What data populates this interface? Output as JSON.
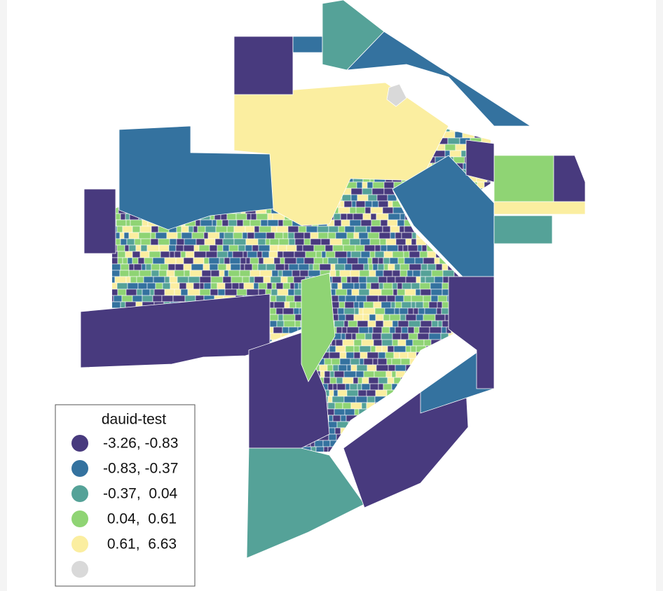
{
  "legend": {
    "title": "dauid-test",
    "items": [
      {
        "label": "-3.26, -0.83",
        "color": "#483a7e"
      },
      {
        "label": "-0.83, -0.37",
        "color": "#34729f"
      },
      {
        "label": "-0.37,  0.04",
        "color": "#55a298"
      },
      {
        "label": " 0.04,  0.61",
        "color": "#8fd474"
      },
      {
        "label": " 0.61,  6.63",
        "color": "#fbeea0"
      },
      {
        "color": "#d9d9d9"
      }
    ]
  }
}
